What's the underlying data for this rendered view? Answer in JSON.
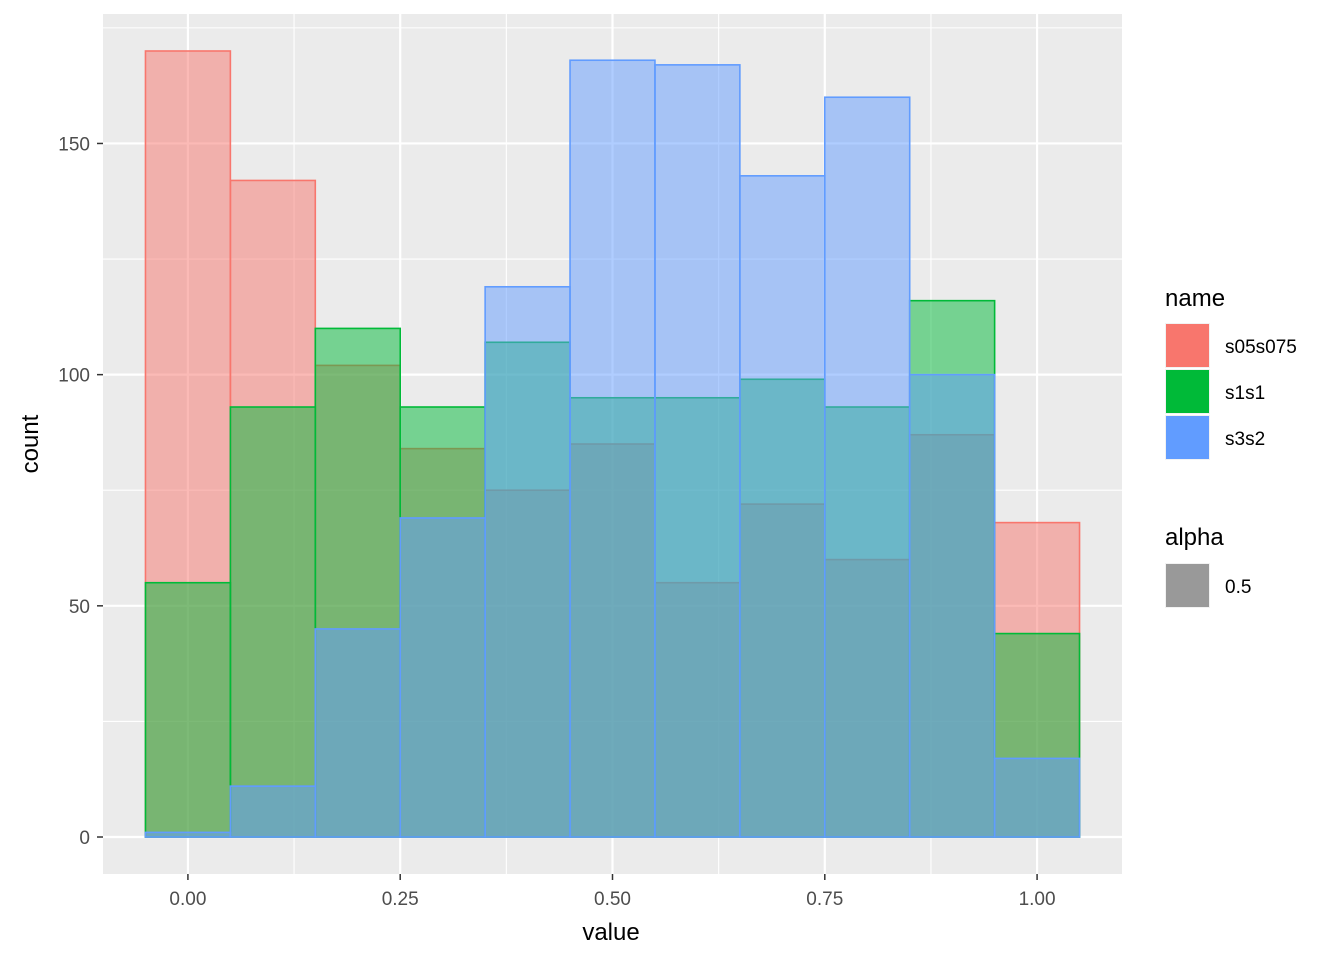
{
  "chart_data": {
    "type": "bar",
    "subtype": "overlaid-histogram",
    "title": "",
    "xlabel": "value",
    "ylabel": "count",
    "xlim": [
      -0.1,
      1.1
    ],
    "ylim": [
      -8,
      178
    ],
    "x_ticks": [
      0.0,
      0.25,
      0.5,
      0.75,
      1.0
    ],
    "x_tick_labels": [
      "0.00",
      "0.25",
      "0.50",
      "0.75",
      "1.00"
    ],
    "y_ticks": [
      0,
      50,
      100,
      150
    ],
    "y_tick_labels": [
      "0",
      "50",
      "100",
      "150"
    ],
    "bin_width": 0.1,
    "bin_centers": [
      0.0,
      0.1,
      0.2,
      0.3,
      0.4,
      0.5,
      0.6,
      0.7,
      0.8,
      0.9,
      1.0
    ],
    "opacity": 0.5,
    "grid": true,
    "legend_position": "right",
    "series": [
      {
        "name": "s05s075",
        "color": "#F8766D",
        "values": [
          170,
          142,
          102,
          84,
          75,
          85,
          55,
          72,
          60,
          87,
          68
        ]
      },
      {
        "name": "s1s1",
        "color": "#00BA38",
        "values": [
          55,
          93,
          110,
          93,
          107,
          95,
          95,
          99,
          93,
          116,
          44
        ]
      },
      {
        "name": "s3s2",
        "color": "#619CFF",
        "values": [
          1,
          11,
          45,
          69,
          119,
          168,
          167,
          143,
          160,
          100,
          17
        ]
      }
    ],
    "legends": [
      {
        "title": "name",
        "entries": [
          "s05s075",
          "s1s1",
          "s3s2"
        ]
      },
      {
        "title": "alpha",
        "entries": [
          "0.5"
        ],
        "swatch_color": "#999999"
      }
    ]
  }
}
